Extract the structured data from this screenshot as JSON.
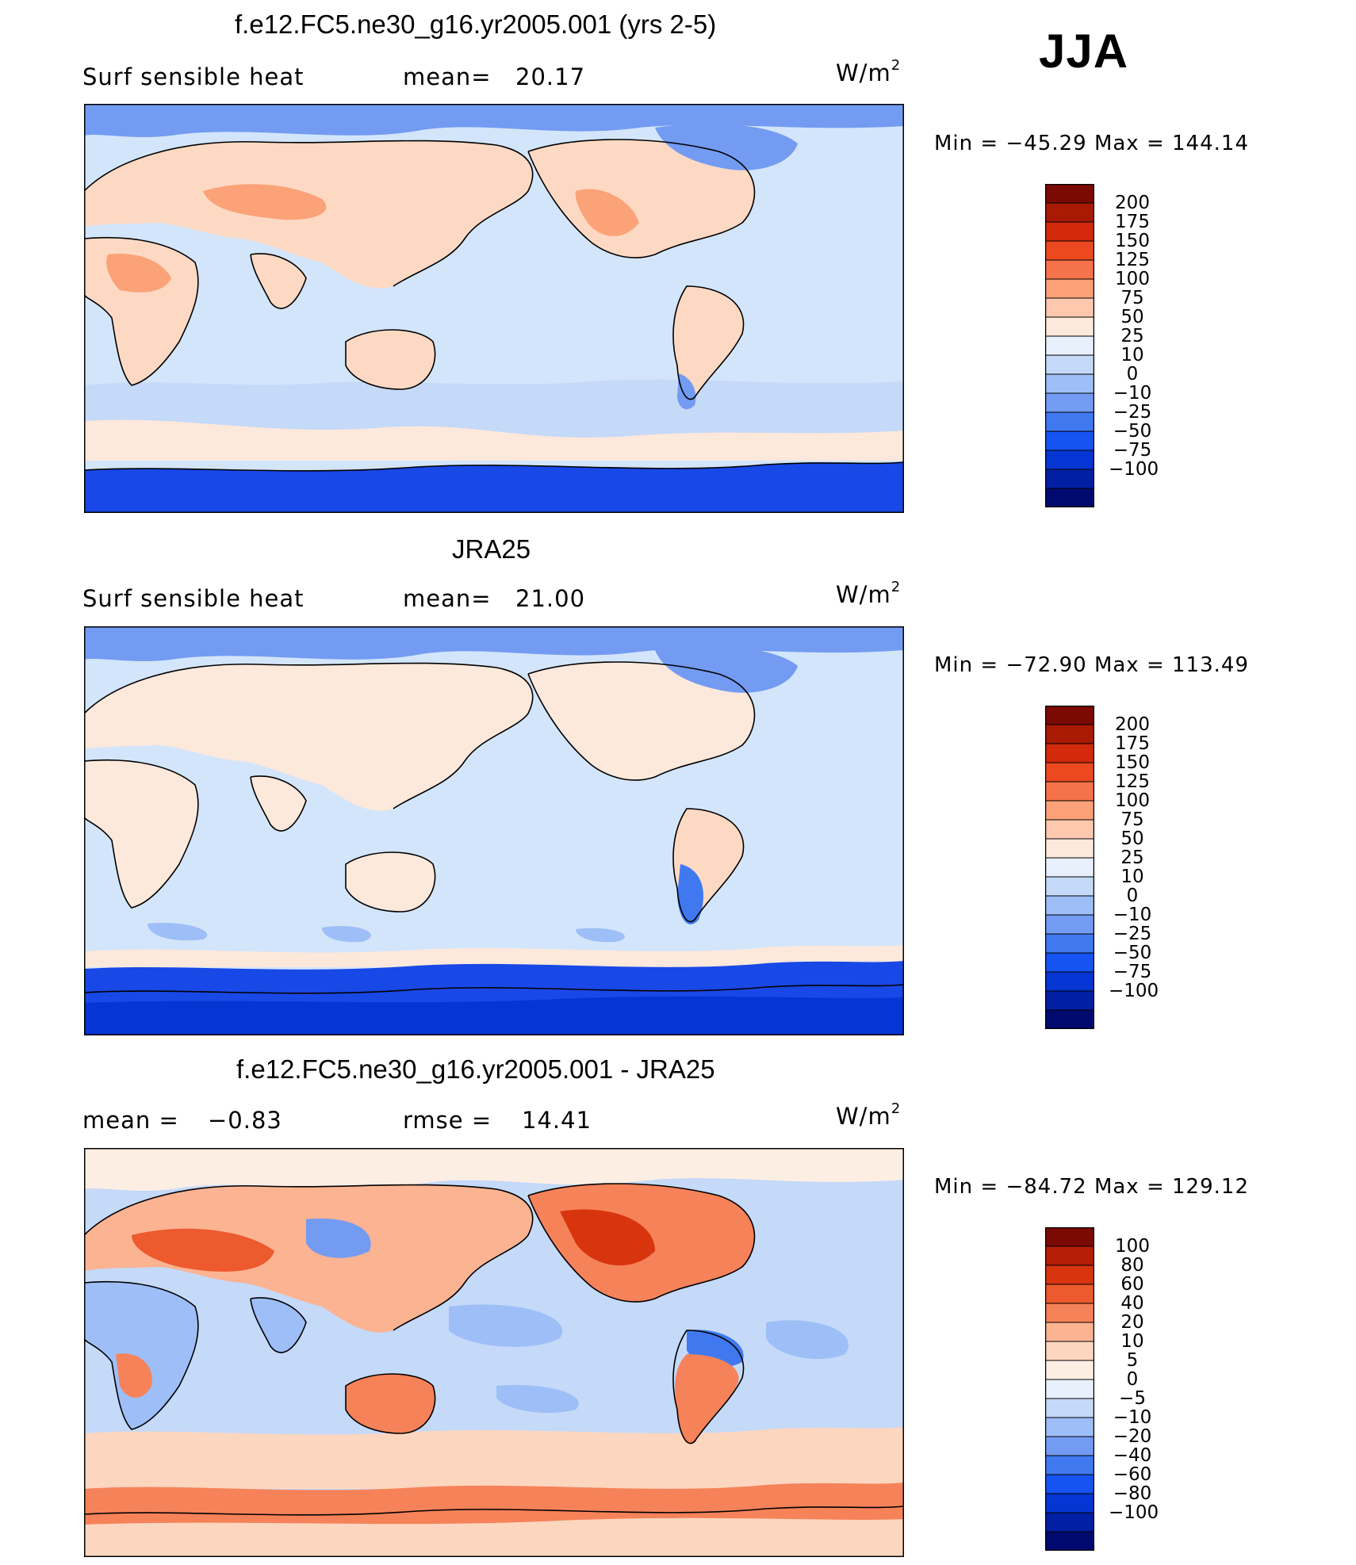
{
  "season": "JJA",
  "units": {
    "base": "W/m",
    "exp": "2"
  },
  "colors": {
    "levels_main": [
      "#000a6e",
      "#001fa3",
      "#0535d2",
      "#1553f2",
      "#4079ef",
      "#739bf2",
      "#9ebef7",
      "#c5d9f8",
      "#e7f0fb",
      "#fde8dc",
      "#fdc8ae",
      "#fba278",
      "#f6724a",
      "#ec4920",
      "#d22a0b",
      "#a91a05",
      "#7a0a03"
    ],
    "levels_diff": [
      "#000a6e",
      "#001fa3",
      "#0535d2",
      "#1553f2",
      "#4079ef",
      "#739bf2",
      "#9ebef7",
      "#c5d9f8",
      "#e7f0fb",
      "#fdeee4",
      "#fdd6bf",
      "#fbb392",
      "#f6825a",
      "#ec5a2d",
      "#d8350f",
      "#b51e05",
      "#7a0a03"
    ],
    "ocean_main": "#d3e5fa",
    "polar_main": "#1848e6",
    "land_main": "#fdd9c4"
  },
  "panels": [
    {
      "id": "model",
      "title": "f.e12.FC5.ne30_g16.yr2005.001 (yrs 2-5)",
      "left_label": "Surf  sensible  heat",
      "stat_label": "mean=",
      "stat_value": "20.17",
      "minmax": {
        "min_label": "Min  =",
        "min": "−45.29",
        "max_label": "Max  =",
        "max": "144.14"
      },
      "colorbar_labels": [
        "200",
        "175",
        "150",
        "125",
        "100",
        "75",
        "50",
        "25",
        "10",
        "0",
        "−10",
        "−25",
        "−50",
        "−75",
        "−100"
      ]
    },
    {
      "id": "obs",
      "title": "JRA25",
      "left_label": "Surf  sensible  heat",
      "stat_label": "mean=",
      "stat_value": "21.00",
      "minmax": {
        "min_label": "Min  =",
        "min": "−72.90",
        "max_label": "Max  =",
        "max": "113.49"
      },
      "colorbar_labels": [
        "200",
        "175",
        "150",
        "125",
        "100",
        "75",
        "50",
        "25",
        "10",
        "0",
        "−10",
        "−25",
        "−50",
        "−75",
        "−100"
      ]
    },
    {
      "id": "diff",
      "title": "f.e12.FC5.ne30_g16.yr2005.001 - JRA25",
      "left_label": "mean  =",
      "left_value": "−0.83",
      "stat_label": "rmse  =",
      "stat_value": "14.41",
      "minmax": {
        "min_label": "Min  =",
        "min": "−84.72",
        "max_label": "Max  =",
        "max": "129.12"
      },
      "colorbar_labels": [
        "100",
        "80",
        "60",
        "40",
        "20",
        "10",
        "5",
        "0",
        "−5",
        "−10",
        "−20",
        "−40",
        "−60",
        "−80",
        "−100"
      ]
    }
  ]
}
